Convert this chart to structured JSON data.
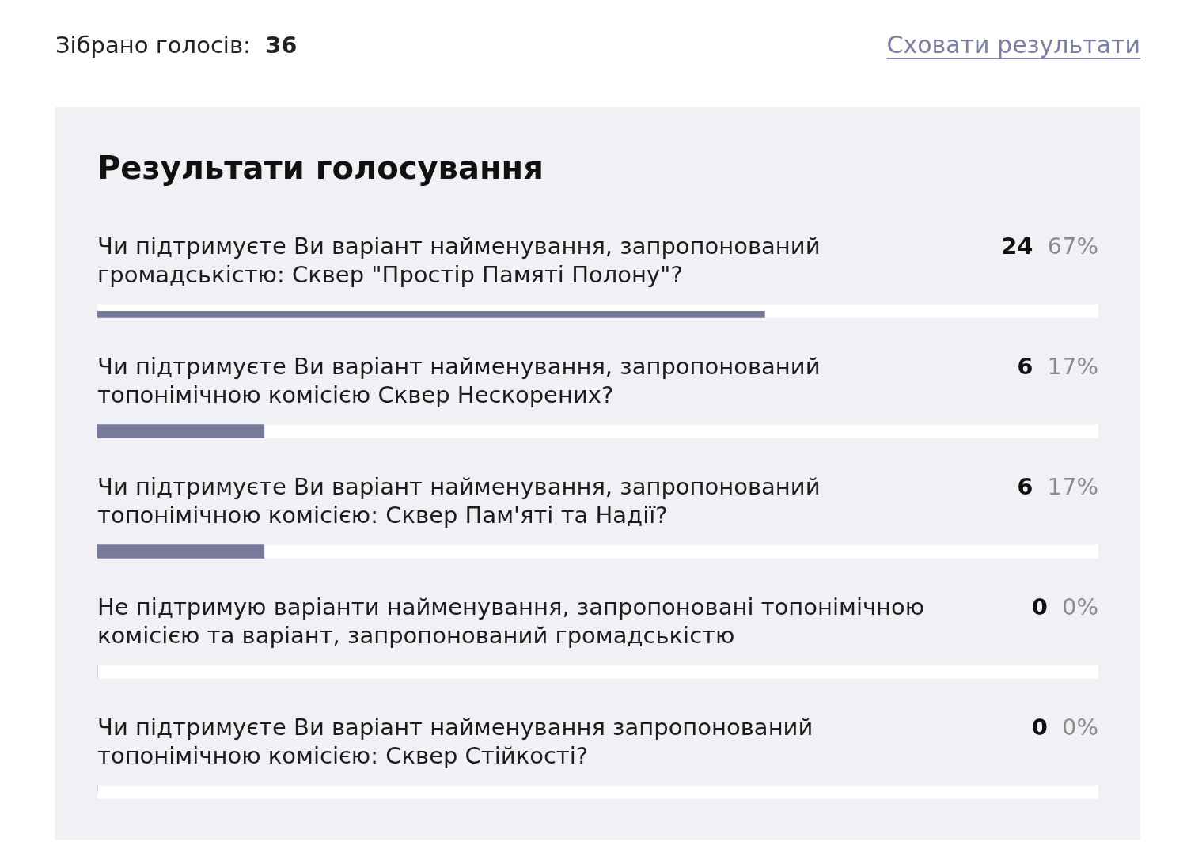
{
  "chart_data": {
    "type": "bar",
    "orientation": "horizontal",
    "title": "Результати голосування",
    "annotations": [
      "Зібрано голосів: 36",
      "Сховати результати"
    ],
    "categories": [
      "Чи підтримуєте Ви варіант найменування, запропонований громадськістю: Сквер \"Простір Памяті Полону\"?",
      "Чи підтримуєте Ви варіант найменування, запропонований топонімічною комісією Сквер Нескорених?",
      "Чи підтримуєте Ви варіант найменування, запропонований топонімічною комісією: Сквер Пам'яті та Надії?",
      "Не підтримую варіанти найменування, запропоновані топонімічною комісією та варіант, запропонований громадськістю",
      "Чи підтримуєте Ви варіант найменування запропонований топонімічною комісією: Сквер Стійкості?"
    ],
    "values": [
      24,
      6,
      6,
      0,
      0
    ],
    "value_labels": [
      "24 67%",
      "6 17%",
      "6 17%",
      "0 0%",
      "0 0%"
    ],
    "color": "#787a9c",
    "tick_labels": "y"
  }
}
